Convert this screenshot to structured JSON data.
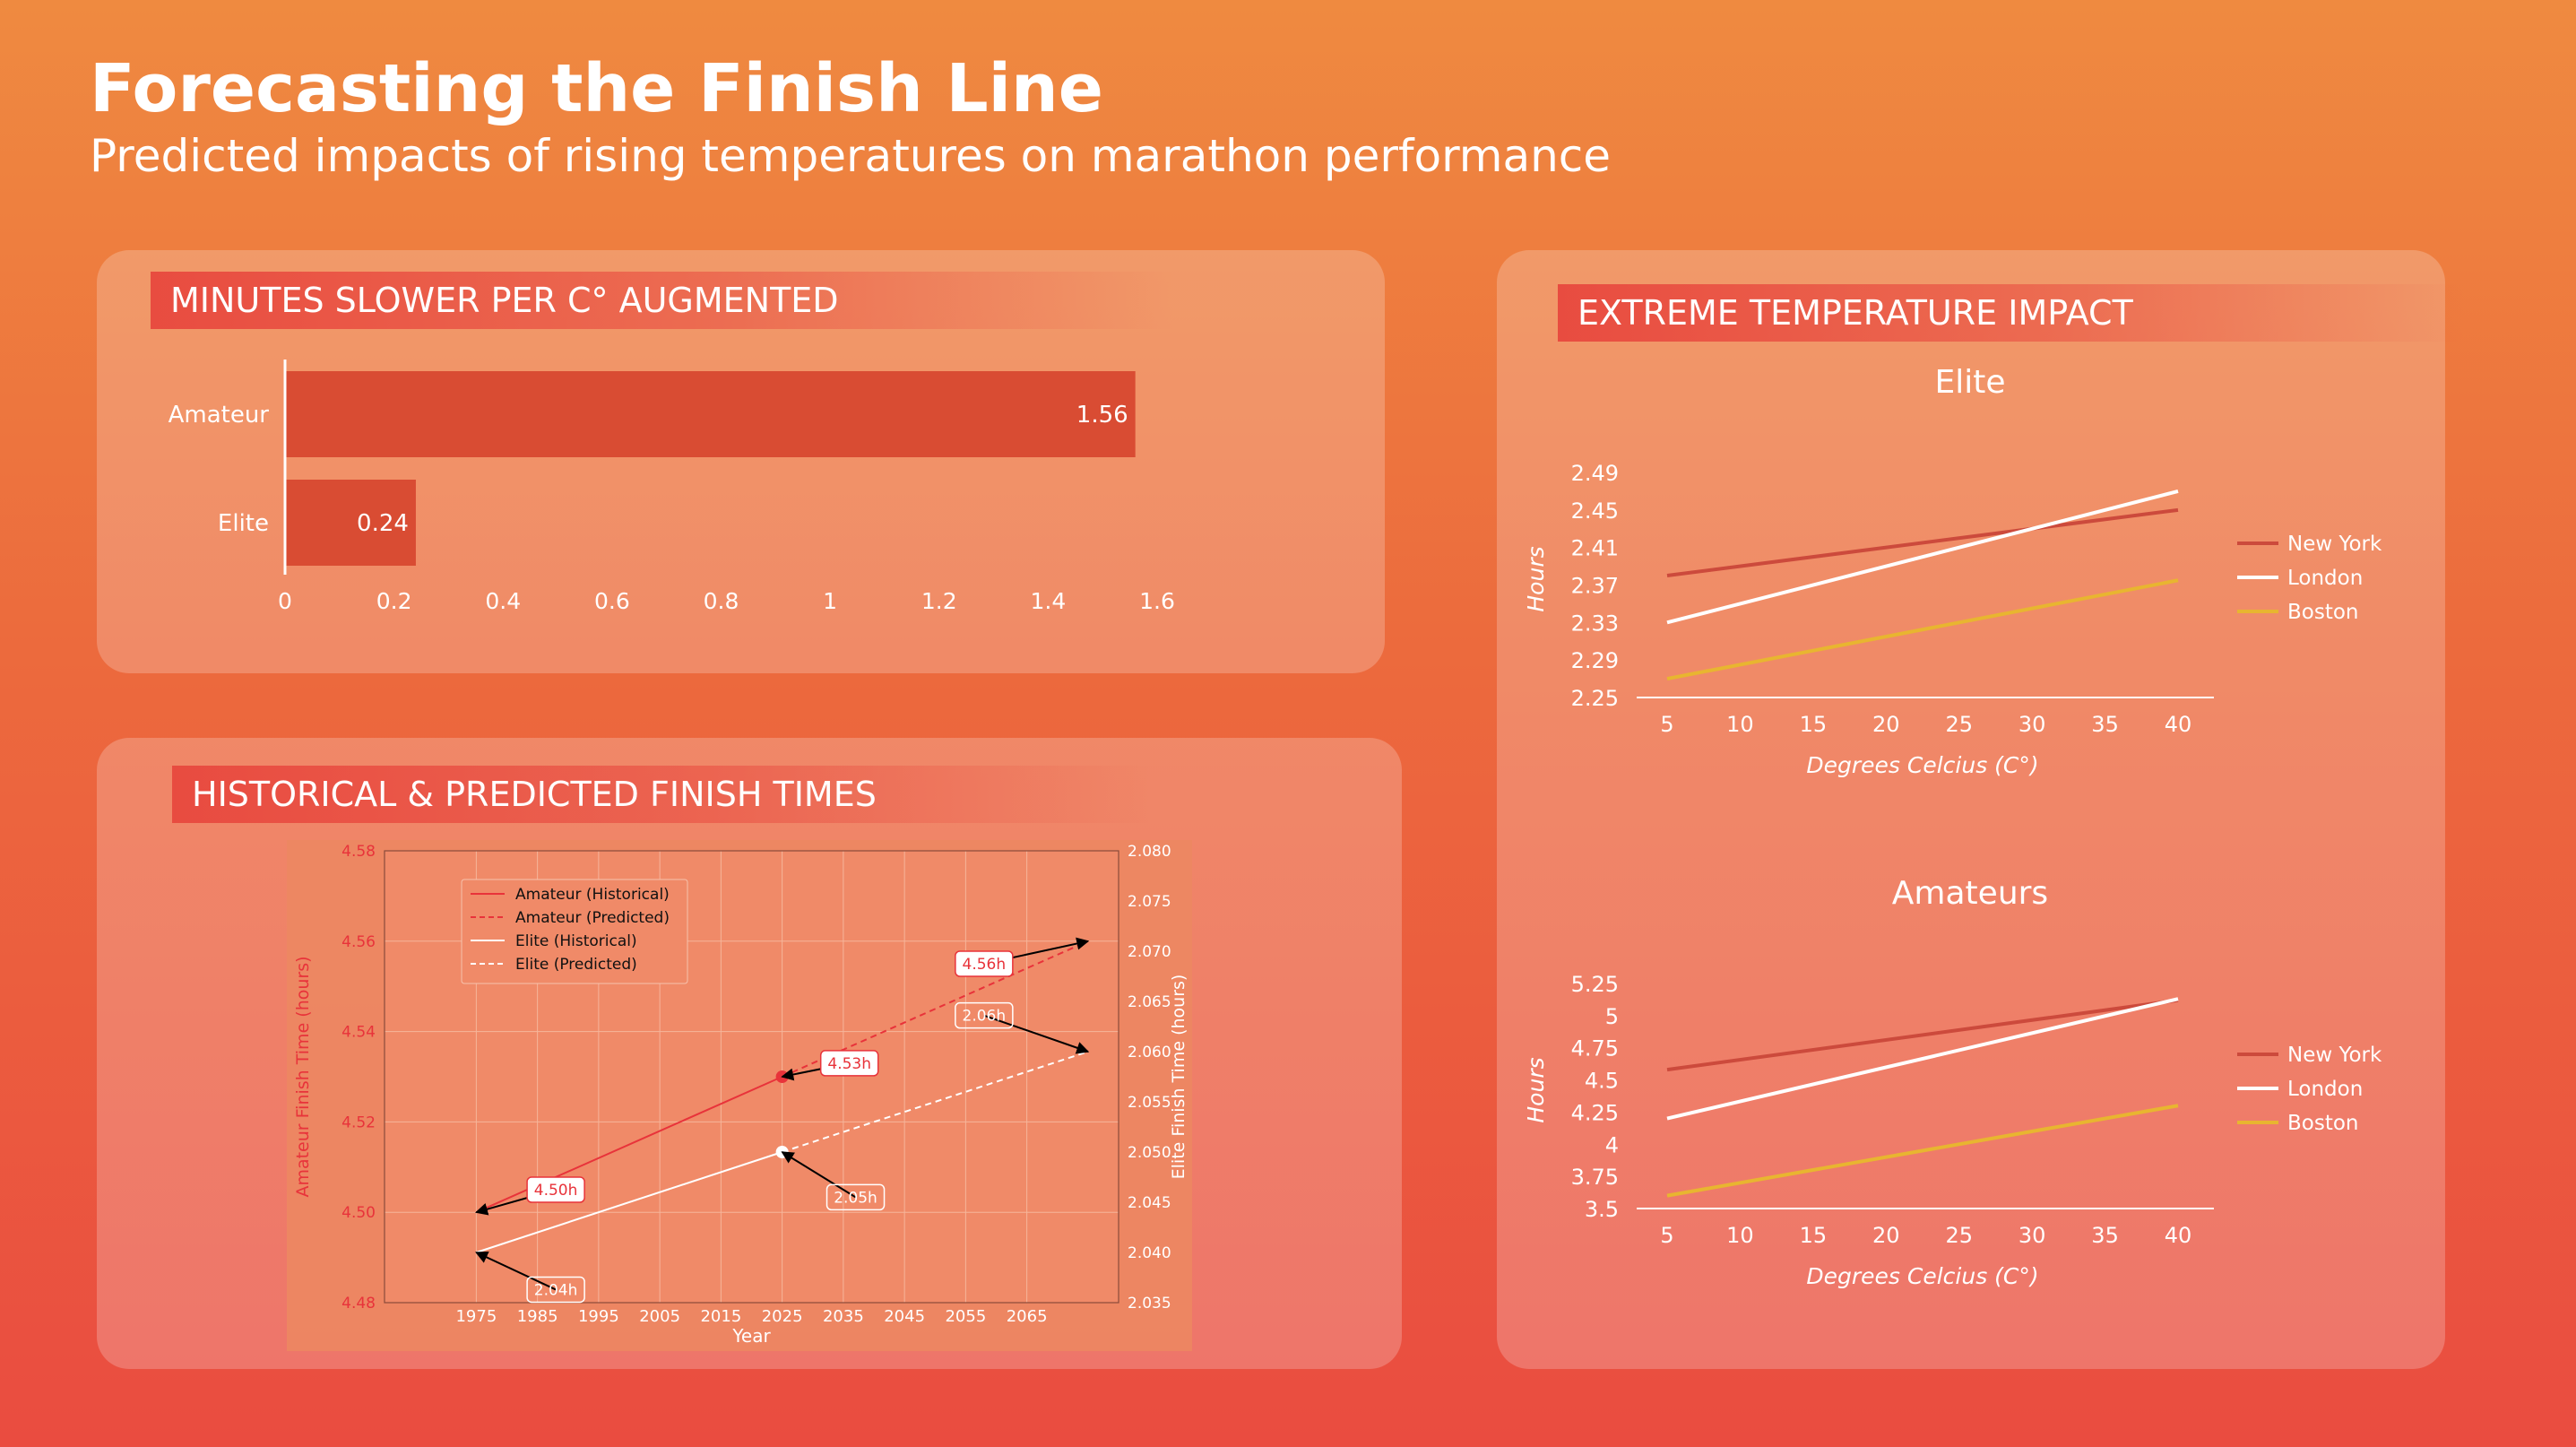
{
  "page": {
    "title": "Forecasting the Finish Line",
    "subtitle": "Predicted impacts of rising temperatures on marathon performance"
  },
  "cards": {
    "bar_title": "MINUTES SLOWER PER C° AUGMENTED",
    "history_title": "HISTORICAL & PREDICTED FINISH TIMES",
    "extreme_title": "EXTREME TEMPERATURE IMPACT"
  },
  "colors": {
    "bar": "#d94c33",
    "new_york": "#cc4a3c",
    "london": "#ffffff",
    "boston": "#e8b530",
    "amateur_line": "#e8333a",
    "elite_line": "#ffffff"
  },
  "chart_data": [
    {
      "id": "minutes_slower",
      "type": "bar",
      "orientation": "horizontal",
      "title": "MINUTES SLOWER PER C° AUGMENTED",
      "categories": [
        "Amateur",
        "Elite"
      ],
      "values": [
        1.56,
        0.24
      ],
      "value_labels": [
        "1.56",
        "0.24"
      ],
      "xlim": [
        0,
        1.6
      ],
      "xticks": [
        0,
        0.2,
        0.4,
        0.6,
        0.8,
        1,
        1.2,
        1.4,
        1.6
      ],
      "xtick_labels": [
        "0",
        "0.2",
        "0.4",
        "0.6",
        "0.8",
        "1",
        "1.2",
        "1.4",
        "1.6"
      ]
    },
    {
      "id": "historical_predicted",
      "type": "line",
      "title": "HISTORICAL & PREDICTED FINISH TIMES",
      "xlabel": "Year",
      "ylabel_left": "Amateur Finish Time (hours)",
      "ylabel_right": "Elite Finish Time (hours)",
      "xlim": [
        1960,
        2080
      ],
      "xticks": [
        1975,
        1985,
        1995,
        2005,
        2015,
        2025,
        2035,
        2045,
        2055,
        2065
      ],
      "ylim_left": [
        4.48,
        4.58
      ],
      "yticks_left": [
        "4.48",
        "4.50",
        "4.52",
        "4.54",
        "4.56",
        "4.58"
      ],
      "ylim_right": [
        2.035,
        2.08
      ],
      "yticks_right": [
        "2.035",
        "2.040",
        "2.045",
        "2.050",
        "2.055",
        "2.060",
        "2.065",
        "2.070",
        "2.075",
        "2.080"
      ],
      "grid": true,
      "legend": "top-left",
      "series": [
        {
          "name": "Amateur (Historical)",
          "axis": "left",
          "style": "solid",
          "x": [
            1975,
            2025
          ],
          "y": [
            4.5,
            4.53
          ]
        },
        {
          "name": "Amateur (Predicted)",
          "axis": "left",
          "style": "dashed",
          "x": [
            2025,
            2075
          ],
          "y": [
            4.53,
            4.56
          ]
        },
        {
          "name": "Elite (Historical)",
          "axis": "right",
          "style": "solid",
          "x": [
            1975,
            2025
          ],
          "y": [
            2.04,
            2.05
          ]
        },
        {
          "name": "Elite (Predicted)",
          "axis": "right",
          "style": "dashed",
          "x": [
            2025,
            2075
          ],
          "y": [
            2.05,
            2.06
          ]
        }
      ],
      "annotations": [
        {
          "text": "4.50h",
          "axis": "left",
          "x": 1975,
          "y": 4.5,
          "tx": 1988,
          "ty": 4.505
        },
        {
          "text": "4.53h",
          "axis": "left",
          "x": 2025,
          "y": 4.53,
          "tx": 2036,
          "ty": 4.533
        },
        {
          "text": "4.56h",
          "axis": "left",
          "x": 2075,
          "y": 4.56,
          "tx": 2058,
          "ty": 4.555
        },
        {
          "text": "2.04h",
          "axis": "right",
          "x": 1975,
          "y": 2.04,
          "tx": 1988,
          "ty": 2.0363
        },
        {
          "text": "2.05h",
          "axis": "right",
          "x": 2025,
          "y": 2.05,
          "tx": 2037,
          "ty": 2.0455
        },
        {
          "text": "2.06h",
          "axis": "right",
          "x": 2075,
          "y": 2.06,
          "tx": 2058,
          "ty": 2.0636
        }
      ]
    },
    {
      "id": "elite_temp",
      "type": "line",
      "title": "Elite",
      "xlabel": "Degrees Celcius (C°)",
      "ylabel": "Hours",
      "xticks": [
        5,
        10,
        15,
        20,
        25,
        30,
        35,
        40
      ],
      "yticks": [
        "2.25",
        "2.29",
        "2.33",
        "2.37",
        "2.41",
        "2.45",
        "2.49"
      ],
      "ylim": [
        2.25,
        2.49
      ],
      "legend": "right",
      "series": [
        {
          "name": "New York",
          "color_key": "new_york",
          "x": [
            5,
            40
          ],
          "y": [
            2.38,
            2.45
          ]
        },
        {
          "name": "London",
          "color_key": "london",
          "x": [
            5,
            40
          ],
          "y": [
            2.33,
            2.47
          ]
        },
        {
          "name": "Boston",
          "color_key": "boston",
          "x": [
            5,
            40
          ],
          "y": [
            2.27,
            2.375
          ]
        }
      ]
    },
    {
      "id": "amateur_temp",
      "type": "line",
      "title": "Amateurs",
      "xlabel": "Degrees Celcius (C°)",
      "ylabel": "Hours",
      "xticks": [
        5,
        10,
        15,
        20,
        25,
        30,
        35,
        40
      ],
      "yticks": [
        "3.5",
        "3.75",
        "4",
        "4.25",
        "4.5",
        "4.75",
        "5",
        "5.25"
      ],
      "ylim": [
        3.5,
        5.25
      ],
      "legend": "right",
      "series": [
        {
          "name": "New York",
          "color_key": "new_york",
          "x": [
            5,
            40
          ],
          "y": [
            4.58,
            5.12
          ]
        },
        {
          "name": "London",
          "color_key": "london",
          "x": [
            5,
            40
          ],
          "y": [
            4.2,
            5.13
          ]
        },
        {
          "name": "Boston",
          "color_key": "boston",
          "x": [
            5,
            40
          ],
          "y": [
            3.6,
            4.3
          ]
        }
      ]
    }
  ]
}
